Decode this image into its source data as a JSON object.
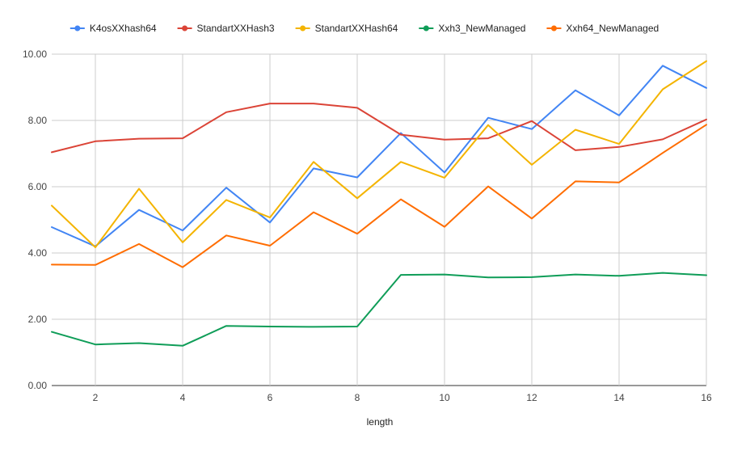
{
  "chart_data": {
    "type": "line",
    "title": "",
    "xlabel": "length",
    "ylabel": "",
    "x": [
      1,
      2,
      3,
      4,
      5,
      6,
      7,
      8,
      9,
      10,
      11,
      12,
      13,
      14,
      15,
      16
    ],
    "xlim": [
      1,
      16
    ],
    "ylim": [
      0,
      10
    ],
    "x_ticks": [
      2,
      4,
      6,
      8,
      10,
      12,
      14,
      16
    ],
    "x_tick_labels": [
      "2",
      "4",
      "6",
      "8",
      "10",
      "12",
      "14",
      "16"
    ],
    "y_ticks": [
      0,
      2,
      4,
      6,
      8,
      10
    ],
    "y_tick_labels": [
      "0.00",
      "2.00",
      "4.00",
      "6.00",
      "8.00",
      "10.00"
    ],
    "grid": true,
    "legend_position": "top",
    "series": [
      {
        "name": "K4osXXhash64",
        "color": "#4285f4",
        "values": [
          4.78,
          4.2,
          5.3,
          4.68,
          5.97,
          4.92,
          6.55,
          6.28,
          7.62,
          6.43,
          8.08,
          7.74,
          8.91,
          8.15,
          9.65,
          8.98
        ]
      },
      {
        "name": "StandartXXHash3",
        "color": "#db4437",
        "values": [
          7.04,
          7.37,
          7.45,
          7.46,
          8.25,
          8.51,
          8.51,
          8.38,
          7.57,
          7.42,
          7.46,
          7.98,
          7.1,
          7.2,
          7.43,
          8.03
        ]
      },
      {
        "name": "StandartXXHash64",
        "color": "#f4b400",
        "values": [
          5.43,
          4.17,
          5.94,
          4.32,
          5.6,
          5.07,
          6.75,
          5.65,
          6.75,
          6.27,
          7.86,
          6.66,
          7.72,
          7.29,
          8.94,
          9.79
        ]
      },
      {
        "name": "Xxh3_NewManaged",
        "color": "#0f9d58",
        "values": [
          1.62,
          1.24,
          1.28,
          1.2,
          1.8,
          1.78,
          1.77,
          1.78,
          3.34,
          3.35,
          3.26,
          3.27,
          3.35,
          3.31,
          3.4,
          3.33
        ]
      },
      {
        "name": "Xxh64_NewManaged",
        "color": "#ff6d01",
        "values": [
          3.65,
          3.64,
          4.27,
          3.57,
          4.53,
          4.22,
          5.23,
          4.58,
          5.62,
          4.79,
          6.01,
          5.04,
          6.16,
          6.13,
          7.02,
          7.87
        ]
      }
    ]
  }
}
